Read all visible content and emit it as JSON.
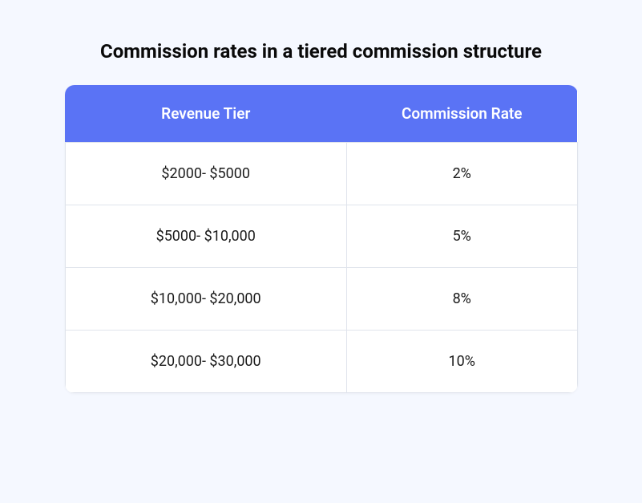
{
  "title": "Commission rates in a tiered commission structure",
  "table": {
    "type": "table",
    "columns": [
      "Revenue Tier",
      "Commission Rate"
    ],
    "rows": [
      [
        "$2000- $5000",
        "2%"
      ],
      [
        "$5000- $10,000",
        "5%"
      ],
      [
        "$10,000- $20,000",
        "8%"
      ],
      [
        "$20,000- $30,000",
        "10%"
      ]
    ],
    "header_background_color": "#5a73f5",
    "header_text_color": "#ffffff",
    "header_fontsize": 19,
    "header_fontweight": 600,
    "cell_background_color": "#ffffff",
    "cell_text_color": "#1a1a1a",
    "cell_fontsize": 18,
    "border_color": "#e0e4ec",
    "border_radius": 12,
    "column_widths": [
      "55%",
      "45%"
    ],
    "cell_alignment": "center"
  },
  "page": {
    "background_color": "#f5f8ff",
    "title_color": "#0a0a0a",
    "title_fontsize": 24,
    "title_fontweight": 700
  }
}
